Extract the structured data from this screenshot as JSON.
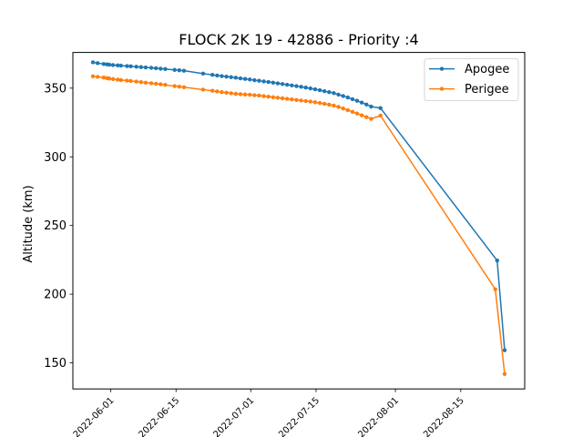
{
  "chart_data": {
    "type": "line",
    "title": "FLOCK 2K 19 - 42886 - Priority :4",
    "xlabel": "",
    "ylabel": "Altitude (km)",
    "ylim": [
      131,
      376
    ],
    "xlim_days": [
      -8.1,
      88.7
    ],
    "x_origin_date": "2022-06-01",
    "yticks": [
      150,
      200,
      250,
      300,
      350
    ],
    "xticks": [
      {
        "day": 0,
        "label": "2022-06-01"
      },
      {
        "day": 14,
        "label": "2022-06-15"
      },
      {
        "day": 30,
        "label": "2022-07-01"
      },
      {
        "day": 44,
        "label": "2022-07-15"
      },
      {
        "day": 61,
        "label": "2022-08-01"
      },
      {
        "day": 75,
        "label": "2022-08-15"
      }
    ],
    "legend_position": "upper-right",
    "series": [
      {
        "name": "Apogee",
        "color": "#1f77b4",
        "x": [
          -3.8,
          -2.8,
          -1.5,
          -0.8,
          -0.3,
          0.5,
          1.5,
          2.2,
          3.5,
          4.3,
          5.5,
          6.5,
          7.5,
          8.7,
          9.7,
          10.7,
          11.7,
          13.7,
          14.7,
          15.7,
          19.8,
          21.8,
          22.8,
          23.8,
          24.8,
          25.8,
          26.8,
          27.8,
          28.8,
          29.8,
          30.8,
          31.8,
          32.8,
          33.8,
          34.8,
          35.8,
          36.8,
          37.8,
          38.8,
          39.8,
          40.8,
          41.8,
          42.8,
          43.8,
          44.8,
          45.8,
          46.8,
          47.8,
          48.8,
          49.8,
          50.8,
          51.8,
          52.8,
          53.8,
          54.8,
          55.8,
          57.8,
          82.8,
          84.4
        ],
        "y": [
          368.8,
          368.2,
          367.6,
          367.3,
          367.1,
          366.8,
          366.6,
          366.4,
          366.1,
          365.9,
          365.6,
          365.3,
          365.1,
          364.8,
          364.5,
          364.2,
          363.9,
          363.3,
          363.0,
          362.7,
          360.6,
          359.7,
          359.2,
          358.8,
          358.4,
          358.0,
          357.6,
          357.1,
          356.7,
          356.3,
          355.8,
          355.4,
          354.9,
          354.5,
          354.0,
          353.5,
          353.0,
          352.5,
          352.0,
          351.5,
          351.0,
          350.4,
          349.8,
          349.2,
          348.5,
          347.8,
          347.1,
          346.4,
          345.3,
          344.3,
          343.2,
          342.0,
          340.8,
          339.5,
          338.1,
          336.6,
          335.5,
          224.5,
          159.2
        ]
      },
      {
        "name": "Perigee",
        "color": "#ff7f0e",
        "x": [
          -3.8,
          -2.8,
          -1.5,
          -0.8,
          -0.3,
          0.5,
          1.5,
          2.2,
          3.5,
          4.3,
          5.5,
          6.5,
          7.5,
          8.7,
          9.7,
          10.7,
          11.7,
          13.7,
          14.7,
          15.7,
          19.8,
          21.8,
          22.8,
          23.8,
          24.8,
          25.8,
          26.8,
          27.8,
          28.8,
          29.8,
          30.8,
          31.8,
          32.8,
          33.8,
          34.8,
          35.8,
          36.8,
          37.8,
          38.8,
          39.8,
          40.8,
          41.8,
          42.8,
          43.8,
          44.8,
          45.8,
          46.8,
          47.8,
          48.8,
          49.8,
          50.8,
          51.8,
          52.8,
          53.8,
          54.8,
          55.8,
          57.8,
          82.4,
          84.4
        ],
        "y": [
          358.6,
          358.2,
          357.7,
          357.3,
          357.0,
          356.6,
          356.2,
          355.9,
          355.5,
          355.2,
          354.8,
          354.4,
          354.0,
          353.6,
          353.2,
          352.8,
          352.4,
          351.5,
          351.1,
          350.7,
          348.9,
          348.1,
          347.6,
          347.1,
          346.7,
          346.3,
          345.9,
          345.6,
          345.4,
          345.2,
          344.9,
          344.6,
          344.2,
          343.8,
          343.4,
          343.0,
          342.6,
          342.2,
          341.8,
          341.4,
          341.0,
          340.6,
          340.2,
          339.7,
          339.2,
          338.6,
          338.0,
          337.3,
          336.3,
          335.2,
          334.0,
          332.8,
          331.5,
          330.2,
          328.9,
          327.6,
          330.0,
          203.6,
          141.9
        ]
      }
    ]
  }
}
